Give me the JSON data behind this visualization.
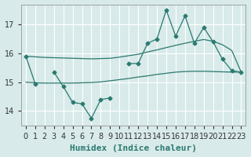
{
  "xlabel": "Humidex (Indice chaleur)",
  "ylabel": "",
  "bg_color": "#d8eaea",
  "grid_color": "#ffffff",
  "line_color": "#2a7a6f",
  "x_values": [
    0,
    1,
    2,
    3,
    4,
    5,
    6,
    7,
    8,
    9,
    10,
    11,
    12,
    13,
    14,
    15,
    16,
    17,
    18,
    19,
    20,
    21,
    22,
    23
  ],
  "line_main": [
    15.9,
    14.95,
    null,
    15.35,
    14.85,
    14.3,
    14.25,
    13.75,
    14.4,
    14.45,
    null,
    15.65,
    15.65,
    16.35,
    16.5,
    17.5,
    16.6,
    17.3,
    16.35,
    16.9,
    16.4,
    15.8,
    15.4,
    15.35
  ],
  "x_trend_up": [
    0,
    1,
    2,
    3,
    4,
    5,
    6,
    7,
    8,
    9,
    10,
    11,
    12,
    13,
    14,
    15,
    16,
    17,
    18,
    19,
    20,
    21,
    22,
    23
  ],
  "y_trend_up": [
    15.9,
    15.88,
    15.86,
    15.85,
    15.84,
    15.83,
    15.82,
    15.81,
    15.82,
    15.83,
    15.87,
    15.92,
    15.97,
    16.05,
    16.12,
    16.2,
    16.28,
    16.35,
    16.42,
    16.48,
    16.42,
    16.3,
    16.1,
    15.35
  ],
  "x_trend_lo": [
    0,
    1,
    2,
    3,
    4,
    5,
    6,
    7,
    8,
    9,
    10,
    11,
    12,
    13,
    14,
    15,
    16,
    17,
    18,
    19,
    20,
    21,
    22,
    23
  ],
  "y_trend_lo": [
    15.0,
    14.98,
    14.97,
    14.97,
    14.97,
    14.97,
    14.98,
    14.99,
    15.01,
    15.05,
    15.09,
    15.13,
    15.18,
    15.22,
    15.27,
    15.31,
    15.35,
    15.37,
    15.38,
    15.38,
    15.37,
    15.36,
    15.35,
    15.35
  ],
  "ylim": [
    13.5,
    17.7
  ],
  "xlim": [
    -0.5,
    23.5
  ],
  "yticks": [
    14,
    15,
    16,
    17
  ],
  "xticks": [
    0,
    1,
    2,
    3,
    4,
    5,
    6,
    7,
    8,
    9,
    10,
    11,
    12,
    13,
    14,
    15,
    16,
    17,
    18,
    19,
    20,
    21,
    22,
    23
  ],
  "tick_label_size": 7,
  "axis_label_size": 8
}
